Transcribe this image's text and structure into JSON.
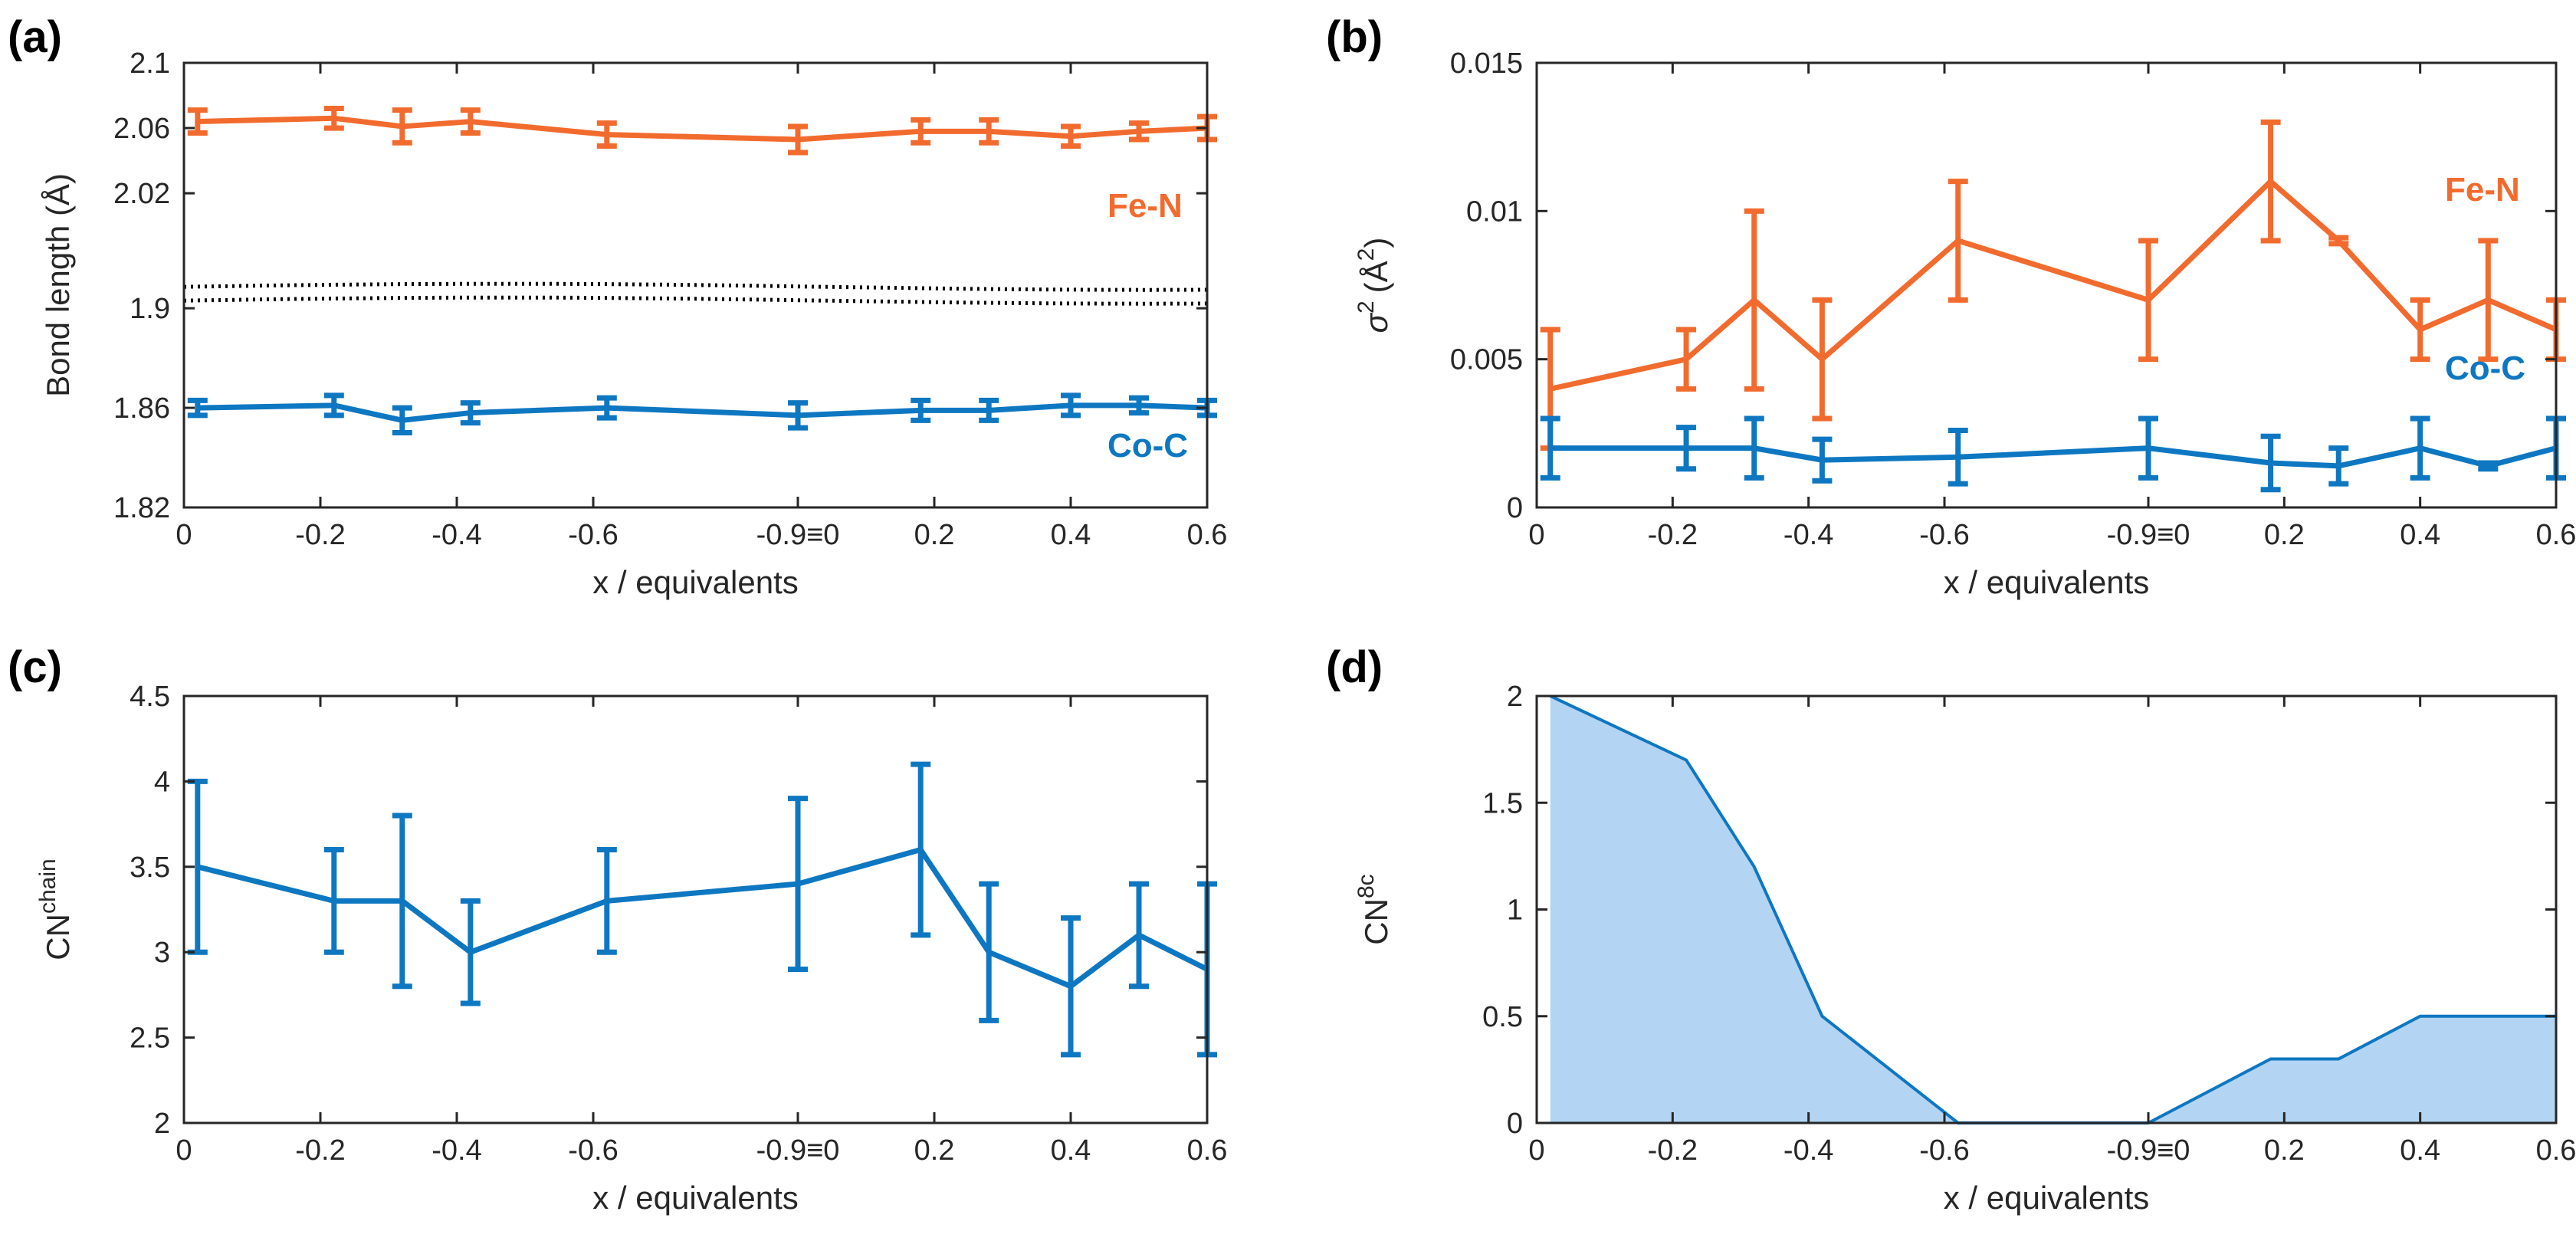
{
  "chart_data": [
    {
      "panel": "(a)",
      "type": "line",
      "xlabel": "x / equivalents",
      "ylabel": "Bond length (Å)",
      "x_tick_labels": [
        "0",
        "-0.2",
        "-0.4",
        "-0.6",
        "-0.9≡0",
        "0.2",
        "0.4",
        "0.6"
      ],
      "y_tick_labels": [
        "1.82",
        "1.86",
        "1.9",
        "2.02",
        "2.06",
        "2.1"
      ],
      "broken_axis": true,
      "lower_segment_ylim": [
        1.82,
        1.92
      ],
      "upper_segment_ylim": [
        1.98,
        2.1
      ],
      "x": [
        0.02,
        0.22,
        0.32,
        0.42,
        0.62,
        0.9,
        1.08,
        1.18,
        1.3,
        1.4,
        1.5
      ],
      "series": [
        {
          "name": "Fe-N",
          "color": "#F26B2E",
          "values": [
            2.064,
            2.066,
            2.061,
            2.064,
            2.056,
            2.053,
            2.058,
            2.058,
            2.055,
            2.058,
            2.06
          ],
          "errors": [
            0.007,
            0.006,
            0.01,
            0.007,
            0.007,
            0.008,
            0.007,
            0.007,
            0.006,
            0.005,
            0.007
          ]
        },
        {
          "name": "Co-C",
          "color": "#0E77C1",
          "values": [
            1.86,
            1.861,
            1.855,
            1.858,
            1.86,
            1.857,
            1.859,
            1.859,
            1.861,
            1.861,
            1.86
          ],
          "errors": [
            0.003,
            0.004,
            0.005,
            0.004,
            0.004,
            0.005,
            0.004,
            0.004,
            0.004,
            0.003,
            0.003
          ]
        }
      ]
    },
    {
      "panel": "(b)",
      "type": "line",
      "xlabel": "x / equivalents",
      "ylabel_main": "σ",
      "ylabel_sup": "2",
      "ylabel_unit": "(Å",
      "ylabel_close": ")",
      "x_tick_labels": [
        "0",
        "-0.2",
        "-0.4",
        "-0.6",
        "-0.9≡0",
        "0.2",
        "0.4",
        "0.6"
      ],
      "y_tick_labels": [
        "0",
        "0.005",
        "0.01",
        "0.015"
      ],
      "ylim": [
        0,
        0.015
      ],
      "x": [
        0.02,
        0.22,
        0.32,
        0.42,
        0.62,
        0.9,
        1.08,
        1.18,
        1.3,
        1.4,
        1.5
      ],
      "series": [
        {
          "name": "Fe-N",
          "color": "#F26B2E",
          "values": [
            0.004,
            0.005,
            0.007,
            0.005,
            0.009,
            0.007,
            0.011,
            0.009,
            0.006,
            0.007,
            0.006
          ],
          "errors": [
            0.002,
            0.001,
            0.003,
            0.002,
            0.002,
            0.002,
            0.002,
            0.0001,
            0.001,
            0.002,
            0.001
          ]
        },
        {
          "name": "Co-C",
          "color": "#0E77C1",
          "values": [
            0.002,
            0.002,
            0.002,
            0.0016,
            0.0017,
            0.002,
            0.0015,
            0.0014,
            0.002,
            0.0014,
            0.002
          ],
          "errors": [
            0.001,
            0.0007,
            0.001,
            0.0007,
            0.0009,
            0.001,
            0.0009,
            0.0006,
            0.001,
            0.0001,
            0.001
          ]
        }
      ]
    },
    {
      "panel": "(c)",
      "type": "line",
      "xlabel": "x / equivalents",
      "ylabel_main": "CN",
      "ylabel_sup": "chain",
      "x_tick_labels": [
        "0",
        "-0.2",
        "-0.4",
        "-0.6",
        "-0.9≡0",
        "0.2",
        "0.4",
        "0.6"
      ],
      "y_tick_labels": [
        "2",
        "2.5",
        "3",
        "3.5",
        "4",
        "4.5"
      ],
      "ylim": [
        2,
        4.5
      ],
      "x": [
        0.02,
        0.22,
        0.32,
        0.42,
        0.62,
        0.9,
        1.08,
        1.18,
        1.3,
        1.4,
        1.5
      ],
      "series": [
        {
          "name": "CN chain",
          "color": "#0E77C1",
          "values": [
            3.5,
            3.3,
            3.3,
            3.0,
            3.3,
            3.4,
            3.6,
            3.0,
            2.8,
            3.1,
            2.9
          ],
          "errors": [
            0.5,
            0.3,
            0.5,
            0.3,
            0.3,
            0.5,
            0.5,
            0.4,
            0.4,
            0.3,
            0.5
          ]
        }
      ]
    },
    {
      "panel": "(d)",
      "type": "area",
      "xlabel": "x / equivalents",
      "ylabel_main": "CN",
      "ylabel_sup": "8c",
      "x_tick_labels": [
        "0",
        "-0.2",
        "-0.4",
        "-0.6",
        "-0.9≡0",
        "0.2",
        "0.4",
        "0.6"
      ],
      "y_tick_labels": [
        "0",
        "0.5",
        "1",
        "1.5",
        "2"
      ],
      "ylim": [
        0,
        2
      ],
      "x": [
        0.02,
        0.22,
        0.32,
        0.42,
        0.62,
        0.9,
        1.08,
        1.18,
        1.3,
        1.4,
        1.5
      ],
      "series": [
        {
          "name": "CN 8c",
          "color": "#0E77C1",
          "fill": "#B3D5F3",
          "values": [
            2.0,
            1.7,
            1.2,
            0.5,
            0.0,
            0.0,
            0.3,
            0.3,
            0.5,
            0.5,
            0.5
          ]
        }
      ]
    }
  ]
}
